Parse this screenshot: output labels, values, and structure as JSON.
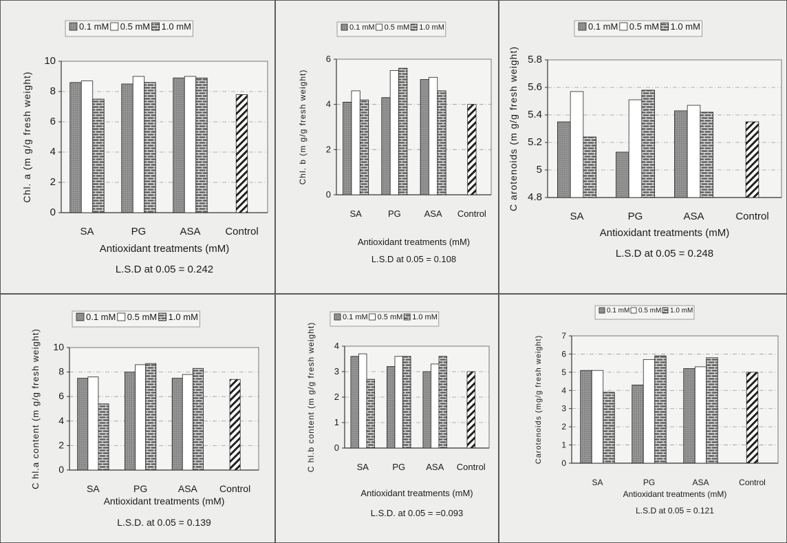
{
  "legend_labels": [
    "0.1 mM",
    "0.5 mM",
    "1.0 mM"
  ],
  "colors": {
    "s0": "#9a9a9a",
    "s1": "#ffffff",
    "s2": "#6f6f6f",
    "control": "#ffffff"
  },
  "chart_data": [
    {
      "type": "bar",
      "categories": [
        "SA",
        "PG",
        "ASA",
        "Control"
      ],
      "series": [
        {
          "name": "0.1 mM",
          "values": [
            8.6,
            8.5,
            8.9,
            null
          ]
        },
        {
          "name": "0.5 mM",
          "values": [
            8.7,
            9.0,
            9.0,
            null
          ]
        },
        {
          "name": "1.0 mM",
          "values": [
            7.5,
            8.6,
            8.9,
            null
          ]
        }
      ],
      "control_value": 7.8,
      "ylabel": "Chl. a (m g/g fresh weight)",
      "xlabel": "Antioxidant treatments (mM)",
      "lsd": "L.S.D at 0.05 = 0.242",
      "ylim": [
        0,
        10
      ],
      "yticks": [
        "0",
        "2",
        "4",
        "6",
        "8",
        "10"
      ],
      "legend": "top-left"
    },
    {
      "type": "bar",
      "categories": [
        "SA",
        "PG",
        "ASA",
        "Control"
      ],
      "series": [
        {
          "name": "0.1 mM",
          "values": [
            4.1,
            4.3,
            5.1,
            null
          ]
        },
        {
          "name": "0.5 mM",
          "values": [
            4.6,
            5.5,
            5.2,
            null
          ]
        },
        {
          "name": "1.0 mM",
          "values": [
            4.2,
            5.6,
            4.6,
            null
          ]
        }
      ],
      "control_value": 4.0,
      "ylabel": "Chl. b (m g/g fresh weight)",
      "xlabel": "Antioxidant treatments (mM)",
      "lsd": "L.S.D at 0.05 = 0.108",
      "ylim": [
        0,
        6
      ],
      "yticks": [
        "0",
        "2",
        "4",
        "6"
      ],
      "legend": "top-left"
    },
    {
      "type": "bar",
      "categories": [
        "SA",
        "PG",
        "ASA",
        "Control"
      ],
      "series": [
        {
          "name": "0.1 mM",
          "values": [
            5.35,
            5.13,
            5.43,
            null
          ]
        },
        {
          "name": "0.5 mM",
          "values": [
            5.57,
            5.51,
            5.47,
            null
          ]
        },
        {
          "name": "1.0 mM",
          "values": [
            5.24,
            5.58,
            5.42,
            null
          ]
        }
      ],
      "control_value": 5.35,
      "ylabel": "C arotenoids (m g/g fresh weight)",
      "xlabel": "Antioxidant treatments (mM)",
      "lsd": "L.S.D at 0.05 = 0.248",
      "ylim": [
        4.8,
        5.8
      ],
      "yticks": [
        "4.8",
        "5",
        "5.2",
        "5.4",
        "5.6",
        "5.8"
      ],
      "legend": "top-left"
    },
    {
      "type": "bar",
      "categories": [
        "SA",
        "PG",
        "ASA",
        "Control"
      ],
      "series": [
        {
          "name": "0.1 mM",
          "values": [
            7.5,
            8.0,
            7.5,
            null
          ]
        },
        {
          "name": "0.5 mM",
          "values": [
            7.6,
            8.6,
            7.8,
            null
          ]
        },
        {
          "name": "1.0 mM",
          "values": [
            5.4,
            8.7,
            8.3,
            null
          ]
        }
      ],
      "control_value": 7.4,
      "ylabel": "C hl.a content (m g/g fresh weight)",
      "xlabel": "Antioxidant treatments (mM)",
      "lsd": "L.S.D. at 0.05 = 0.139",
      "ylim": [
        0,
        10
      ],
      "yticks": [
        "0",
        "2",
        "4",
        "6",
        "8",
        "10"
      ],
      "legend": "top-left"
    },
    {
      "type": "bar",
      "categories": [
        "SA",
        "PG",
        "ASA",
        "Control"
      ],
      "series": [
        {
          "name": "0.1 mM",
          "values": [
            3.6,
            3.2,
            3.0,
            null
          ]
        },
        {
          "name": "0.5 mM",
          "values": [
            3.7,
            3.6,
            3.3,
            null
          ]
        },
        {
          "name": "1.0 mM",
          "values": [
            2.7,
            3.6,
            3.6,
            null
          ]
        }
      ],
      "control_value": 3.0,
      "ylabel": "C hl.b content (m g/g fresh weight)",
      "xlabel": "Antioxidant treatments (mM)",
      "lsd": "L.S.D. at 0.05 = =0.093",
      "ylim": [
        0,
        4
      ],
      "yticks": [
        "0",
        "1",
        "2",
        "3",
        "4"
      ],
      "legend": "top-left"
    },
    {
      "type": "bar",
      "categories": [
        "SA",
        "PG",
        "ASA",
        "Control"
      ],
      "series": [
        {
          "name": "0.1 mM",
          "values": [
            5.1,
            4.3,
            5.2,
            null
          ]
        },
        {
          "name": "0.5 mM",
          "values": [
            5.1,
            5.7,
            5.3,
            null
          ]
        },
        {
          "name": "1.0 mM",
          "values": [
            3.9,
            5.9,
            5.8,
            null
          ]
        }
      ],
      "control_value": 5.0,
      "ylabel": "Carotenoids (mg/g fresh weight)",
      "xlabel": "Antioxidant treatments (mM)",
      "lsd": "L.S.D at 0.05 = 0.121",
      "ylim": [
        0,
        7
      ],
      "yticks": [
        "0",
        "1",
        "2",
        "3",
        "4",
        "5",
        "6",
        "7"
      ],
      "legend": "top-left"
    }
  ]
}
